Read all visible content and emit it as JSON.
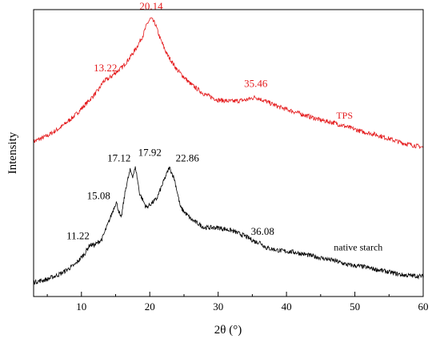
{
  "chart_data": {
    "type": "line",
    "xlabel": "2θ (°)",
    "ylabel": "Intensity",
    "xlim": [
      3,
      60
    ],
    "ylim": [
      0,
      100
    ],
    "xticks": [
      10,
      20,
      30,
      40,
      50,
      60
    ],
    "yticks_shown": false,
    "grid": false,
    "series": [
      {
        "name": "TPS",
        "color": "#e41a1c",
        "label_at": [
          48.5,
          62
        ],
        "points": [
          [
            3,
            54
          ],
          [
            5,
            56
          ],
          [
            7,
            59
          ],
          [
            9,
            63
          ],
          [
            11,
            68
          ],
          [
            12.5,
            72
          ],
          [
            13.22,
            75
          ],
          [
            14,
            76
          ],
          [
            15,
            78
          ],
          [
            16,
            80
          ],
          [
            17,
            83
          ],
          [
            18,
            86.5
          ],
          [
            19,
            91
          ],
          [
            19.6,
            95
          ],
          [
            20.14,
            97
          ],
          [
            20.8,
            95
          ],
          [
            21.5,
            90
          ],
          [
            22.5,
            84.5
          ],
          [
            24,
            79
          ],
          [
            26,
            74
          ],
          [
            28,
            70.5
          ],
          [
            30,
            68.5
          ],
          [
            32,
            68
          ],
          [
            34,
            68.5
          ],
          [
            35.46,
            69.5
          ],
          [
            37,
            68
          ],
          [
            39,
            66
          ],
          [
            41,
            64.5
          ],
          [
            43,
            63
          ],
          [
            45,
            61.5
          ],
          [
            47,
            60.5
          ],
          [
            49,
            59
          ],
          [
            51,
            57.5
          ],
          [
            53,
            56.5
          ],
          [
            55,
            55
          ],
          [
            57,
            53.5
          ],
          [
            60,
            52
          ]
        ],
        "peaks": [
          {
            "x": 13.22,
            "y": 75,
            "label": "13.22",
            "label_at": [
              13.5,
              78.5
            ]
          },
          {
            "x": 20.14,
            "y": 97,
            "label": "20.14",
            "label_at": [
              20.2,
              100
            ]
          },
          {
            "x": 35.46,
            "y": 69.5,
            "label": "35.46",
            "label_at": [
              35.5,
              73
            ]
          }
        ]
      },
      {
        "name": "native starch",
        "color": "#000000",
        "label_at": [
          50.5,
          16
        ],
        "points": [
          [
            3,
            5
          ],
          [
            5,
            6
          ],
          [
            7,
            8
          ],
          [
            9,
            11
          ],
          [
            10.5,
            15
          ],
          [
            11.22,
            18
          ],
          [
            12,
            18
          ],
          [
            13,
            20
          ],
          [
            14,
            26
          ],
          [
            15.08,
            33
          ],
          [
            15.8,
            27
          ],
          [
            16.5,
            38
          ],
          [
            17.12,
            44
          ],
          [
            17.5,
            42
          ],
          [
            17.92,
            45
          ],
          [
            18.5,
            36
          ],
          [
            19.5,
            31
          ],
          [
            21,
            34
          ],
          [
            22,
            40
          ],
          [
            22.86,
            45
          ],
          [
            23.6,
            41
          ],
          [
            24.5,
            31
          ],
          [
            26,
            27
          ],
          [
            28,
            24
          ],
          [
            30,
            24
          ],
          [
            32,
            23
          ],
          [
            34,
            21
          ],
          [
            35.5,
            19
          ],
          [
            36.08,
            19
          ],
          [
            37,
            17
          ],
          [
            39,
            16
          ],
          [
            41,
            15.5
          ],
          [
            43,
            14.5
          ],
          [
            45,
            13.5
          ],
          [
            47,
            12.5
          ],
          [
            49,
            11
          ],
          [
            51,
            10.5
          ],
          [
            53,
            9.5
          ],
          [
            55,
            8.5
          ],
          [
            57,
            7.5
          ],
          [
            60,
            7
          ]
        ],
        "peaks": [
          {
            "x": 11.22,
            "y": 18,
            "label": "11.22",
            "label_at": [
              9.5,
              20
            ]
          },
          {
            "x": 15.08,
            "y": 33,
            "label": "15.08",
            "label_at": [
              12.5,
              34
            ]
          },
          {
            "x": 17.12,
            "y": 44,
            "label": "17.12",
            "label_at": [
              15.5,
              47
            ]
          },
          {
            "x": 17.92,
            "y": 45,
            "label": "17.92",
            "label_at": [
              20,
              49
            ]
          },
          {
            "x": 22.86,
            "y": 45,
            "label": "22.86",
            "label_at": [
              25.5,
              47
            ]
          },
          {
            "x": 36.08,
            "y": 19,
            "label": "36.08",
            "label_at": [
              36.5,
              21.5
            ]
          }
        ]
      }
    ]
  }
}
